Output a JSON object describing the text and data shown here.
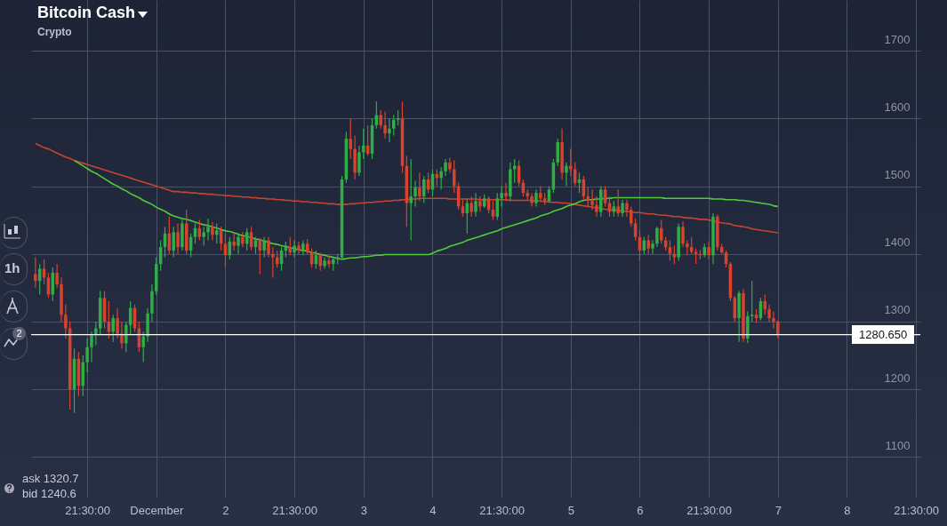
{
  "chart_data": {
    "type": "candlestick",
    "title": "Bitcoin Cash",
    "subtitle": "Crypto",
    "annotations": [
      "1h",
      "2",
      "ask 1320.7",
      "bid 1240.6"
    ],
    "categories": [
      null,
      null,
      null,
      null,
      null,
      null,
      null,
      null,
      null,
      null,
      null,
      null,
      "21:30:00",
      null,
      null,
      null,
      null,
      null,
      null,
      null,
      null,
      null,
      null,
      null,
      null,
      null,
      null,
      null,
      "December",
      null,
      null,
      null,
      null,
      null,
      null,
      null,
      null,
      null,
      null,
      null,
      null,
      null,
      null,
      null,
      "2",
      null,
      null,
      null,
      null,
      null,
      null,
      null,
      null,
      null,
      null,
      null,
      null,
      null,
      null,
      null,
      "21:30:00",
      null,
      null,
      null,
      null,
      null,
      null,
      null,
      null,
      null,
      null,
      null,
      null,
      null,
      null,
      null,
      "3",
      null,
      null,
      null,
      null,
      null,
      null,
      null,
      null,
      null,
      null,
      null,
      null,
      null,
      null,
      null,
      "4",
      null,
      null,
      null,
      null,
      null,
      null,
      null,
      null,
      null,
      null,
      null,
      null,
      null,
      null,
      null,
      "21:30:00",
      null,
      null,
      null,
      null,
      null,
      null,
      null,
      null,
      null,
      null,
      null,
      null,
      null,
      null,
      null,
      "5",
      null,
      null,
      null,
      null,
      null,
      null,
      null,
      null,
      null,
      null,
      null,
      null,
      null,
      null,
      null,
      "6",
      null,
      null,
      null,
      null,
      null,
      null,
      null,
      null,
      null,
      null,
      null,
      null,
      null,
      null,
      null,
      "21:30:00",
      null,
      null,
      null,
      null,
      null,
      null,
      null,
      null,
      null,
      null,
      null,
      null,
      null,
      null,
      null,
      "7",
      null,
      null,
      null,
      null,
      null,
      null,
      null,
      null,
      null,
      null,
      null,
      null,
      null,
      null,
      null,
      "8",
      null,
      null,
      null,
      null,
      null,
      null,
      null,
      null,
      null,
      null,
      null,
      null,
      null,
      null,
      null,
      "21:30:00"
    ],
    "ohlc": [
      [
        1370,
        1395,
        1350,
        1360
      ],
      [
        1360,
        1385,
        1340,
        1378
      ],
      [
        1378,
        1392,
        1355,
        1365
      ],
      [
        1365,
        1372,
        1335,
        1340
      ],
      [
        1340,
        1380,
        1330,
        1372
      ],
      [
        1372,
        1385,
        1350,
        1355
      ],
      [
        1355,
        1365,
        1300,
        1310
      ],
      [
        1310,
        1325,
        1275,
        1290
      ],
      [
        1290,
        1300,
        1170,
        1200
      ],
      [
        1200,
        1260,
        1165,
        1245
      ],
      [
        1245,
        1255,
        1190,
        1205
      ],
      [
        1205,
        1250,
        1190,
        1240
      ],
      [
        1240,
        1275,
        1225,
        1262
      ],
      [
        1262,
        1285,
        1240,
        1280
      ],
      [
        1280,
        1300,
        1265,
        1290
      ],
      [
        1290,
        1345,
        1280,
        1335
      ],
      [
        1335,
        1345,
        1290,
        1300
      ],
      [
        1300,
        1330,
        1275,
        1285
      ],
      [
        1285,
        1310,
        1270,
        1305
      ],
      [
        1305,
        1320,
        1275,
        1282
      ],
      [
        1282,
        1300,
        1260,
        1268
      ],
      [
        1268,
        1300,
        1255,
        1295
      ],
      [
        1295,
        1330,
        1280,
        1320
      ],
      [
        1320,
        1325,
        1285,
        1290
      ],
      [
        1290,
        1300,
        1255,
        1262
      ],
      [
        1262,
        1285,
        1240,
        1278
      ],
      [
        1278,
        1320,
        1270,
        1312
      ],
      [
        1312,
        1355,
        1300,
        1345
      ],
      [
        1345,
        1395,
        1340,
        1385
      ],
      [
        1385,
        1420,
        1375,
        1410
      ],
      [
        1410,
        1440,
        1395,
        1430
      ],
      [
        1430,
        1455,
        1400,
        1405
      ],
      [
        1405,
        1440,
        1395,
        1432
      ],
      [
        1432,
        1445,
        1400,
        1410
      ],
      [
        1410,
        1450,
        1405,
        1445
      ],
      [
        1445,
        1465,
        1400,
        1405
      ],
      [
        1405,
        1430,
        1395,
        1425
      ],
      [
        1425,
        1445,
        1415,
        1438
      ],
      [
        1438,
        1450,
        1420,
        1425
      ],
      [
        1425,
        1440,
        1412,
        1432
      ],
      [
        1432,
        1452,
        1420,
        1440
      ],
      [
        1440,
        1447,
        1420,
        1428
      ],
      [
        1428,
        1445,
        1415,
        1435
      ],
      [
        1435,
        1440,
        1405,
        1415
      ],
      [
        1415,
        1430,
        1380,
        1398
      ],
      [
        1398,
        1425,
        1392,
        1418
      ],
      [
        1418,
        1432,
        1405,
        1412
      ],
      [
        1412,
        1430,
        1400,
        1425
      ],
      [
        1425,
        1432,
        1410,
        1415
      ],
      [
        1415,
        1438,
        1405,
        1432
      ],
      [
        1432,
        1440,
        1405,
        1410
      ],
      [
        1410,
        1425,
        1400,
        1420
      ],
      [
        1420,
        1423,
        1370,
        1405
      ],
      [
        1405,
        1425,
        1395,
        1420
      ],
      [
        1420,
        1425,
        1395,
        1400
      ],
      [
        1400,
        1410,
        1365,
        1395
      ],
      [
        1395,
        1405,
        1380,
        1385
      ],
      [
        1385,
        1410,
        1375,
        1405
      ],
      [
        1405,
        1418,
        1395,
        1410
      ],
      [
        1410,
        1425,
        1398,
        1402
      ],
      [
        1402,
        1420,
        1395,
        1412
      ],
      [
        1412,
        1418,
        1400,
        1405
      ],
      [
        1405,
        1420,
        1398,
        1415
      ],
      [
        1415,
        1422,
        1400,
        1402
      ],
      [
        1402,
        1408,
        1380,
        1385
      ],
      [
        1385,
        1405,
        1378,
        1398
      ],
      [
        1398,
        1402,
        1375,
        1382
      ],
      [
        1382,
        1395,
        1378,
        1390
      ],
      [
        1390,
        1398,
        1380,
        1385
      ],
      [
        1385,
        1395,
        1375,
        1392
      ],
      [
        1392,
        1400,
        1385,
        1395
      ],
      [
        1395,
        1515,
        1392,
        1510
      ],
      [
        1510,
        1580,
        1505,
        1570
      ],
      [
        1570,
        1600,
        1540,
        1555
      ],
      [
        1555,
        1575,
        1510,
        1520
      ],
      [
        1520,
        1560,
        1515,
        1550
      ],
      [
        1550,
        1585,
        1540,
        1560
      ],
      [
        1560,
        1590,
        1545,
        1548
      ],
      [
        1548,
        1600,
        1540,
        1590
      ],
      [
        1590,
        1625,
        1585,
        1605
      ],
      [
        1605,
        1612,
        1585,
        1590
      ],
      [
        1590,
        1610,
        1570,
        1578
      ],
      [
        1578,
        1600,
        1565,
        1585
      ],
      [
        1585,
        1605,
        1575,
        1598
      ],
      [
        1598,
        1612,
        1590,
        1600
      ],
      [
        1600,
        1625,
        1520,
        1530
      ],
      [
        1530,
        1545,
        1440,
        1475
      ],
      [
        1475,
        1540,
        1420,
        1485
      ],
      [
        1485,
        1508,
        1470,
        1498
      ],
      [
        1498,
        1520,
        1478,
        1485
      ],
      [
        1485,
        1515,
        1475,
        1510
      ],
      [
        1510,
        1520,
        1490,
        1495
      ],
      [
        1495,
        1525,
        1485,
        1518
      ],
      [
        1518,
        1525,
        1500,
        1512
      ],
      [
        1512,
        1528,
        1495,
        1522
      ],
      [
        1522,
        1540,
        1515,
        1535
      ],
      [
        1535,
        1542,
        1520,
        1525
      ],
      [
        1525,
        1538,
        1490,
        1500
      ],
      [
        1500,
        1505,
        1465,
        1470
      ],
      [
        1470,
        1480,
        1455,
        1460
      ],
      [
        1460,
        1482,
        1430,
        1475
      ],
      [
        1475,
        1485,
        1455,
        1462
      ],
      [
        1462,
        1490,
        1455,
        1478
      ],
      [
        1478,
        1485,
        1462,
        1470
      ],
      [
        1470,
        1488,
        1468,
        1482
      ],
      [
        1482,
        1485,
        1460,
        1465
      ],
      [
        1465,
        1478,
        1450,
        1455
      ],
      [
        1455,
        1490,
        1450,
        1482
      ],
      [
        1482,
        1500,
        1470,
        1490
      ],
      [
        1490,
        1505,
        1478,
        1485
      ],
      [
        1485,
        1535,
        1478,
        1525
      ],
      [
        1525,
        1540,
        1505,
        1530
      ],
      [
        1530,
        1538,
        1500,
        1505
      ],
      [
        1505,
        1510,
        1485,
        1490
      ],
      [
        1490,
        1495,
        1480,
        1485
      ],
      [
        1485,
        1490,
        1470,
        1475
      ],
      [
        1475,
        1495,
        1470,
        1490
      ],
      [
        1490,
        1500,
        1478,
        1482
      ],
      [
        1482,
        1490,
        1472,
        1478
      ],
      [
        1478,
        1500,
        1475,
        1495
      ],
      [
        1495,
        1540,
        1490,
        1535
      ],
      [
        1535,
        1570,
        1530,
        1565
      ],
      [
        1565,
        1585,
        1510,
        1520
      ],
      [
        1520,
        1535,
        1500,
        1530
      ],
      [
        1530,
        1555,
        1515,
        1525
      ],
      [
        1525,
        1535,
        1500,
        1505
      ],
      [
        1505,
        1520,
        1490,
        1510
      ],
      [
        1510,
        1515,
        1480,
        1485
      ],
      [
        1485,
        1498,
        1470,
        1478
      ],
      [
        1478,
        1495,
        1465,
        1472
      ],
      [
        1472,
        1485,
        1455,
        1462
      ],
      [
        1462,
        1500,
        1455,
        1495
      ],
      [
        1495,
        1500,
        1470,
        1475
      ],
      [
        1475,
        1485,
        1455,
        1462
      ],
      [
        1462,
        1478,
        1455,
        1470
      ],
      [
        1470,
        1495,
        1455,
        1460
      ],
      [
        1460,
        1480,
        1455,
        1475
      ],
      [
        1475,
        1480,
        1455,
        1465
      ],
      [
        1465,
        1470,
        1440,
        1445
      ],
      [
        1445,
        1452,
        1420,
        1425
      ],
      [
        1425,
        1435,
        1390,
        1405
      ],
      [
        1405,
        1425,
        1400,
        1420
      ],
      [
        1420,
        1428,
        1400,
        1408
      ],
      [
        1408,
        1420,
        1400,
        1415
      ],
      [
        1415,
        1440,
        1410,
        1438
      ],
      [
        1438,
        1450,
        1415,
        1420
      ],
      [
        1420,
        1425,
        1405,
        1410
      ],
      [
        1410,
        1420,
        1390,
        1400
      ],
      [
        1400,
        1412,
        1385,
        1395
      ],
      [
        1395,
        1445,
        1390,
        1440
      ],
      [
        1440,
        1448,
        1410,
        1415
      ],
      [
        1415,
        1420,
        1398,
        1410
      ],
      [
        1410,
        1425,
        1400,
        1403
      ],
      [
        1403,
        1408,
        1385,
        1400
      ],
      [
        1400,
        1406,
        1392,
        1398
      ],
      [
        1398,
        1415,
        1395,
        1410
      ],
      [
        1410,
        1418,
        1392,
        1398
      ],
      [
        1398,
        1460,
        1385,
        1455
      ],
      [
        1455,
        1458,
        1405,
        1410
      ],
      [
        1410,
        1415,
        1400,
        1402
      ],
      [
        1402,
        1405,
        1380,
        1385
      ],
      [
        1385,
        1388,
        1330,
        1335
      ],
      [
        1335,
        1338,
        1300,
        1305
      ],
      [
        1305,
        1345,
        1270,
        1342
      ],
      [
        1342,
        1348,
        1270,
        1275
      ],
      [
        1275,
        1315,
        1268,
        1308
      ],
      [
        1308,
        1360,
        1300,
        1310
      ],
      [
        1310,
        1318,
        1298,
        1305
      ],
      [
        1305,
        1335,
        1302,
        1330
      ],
      [
        1330,
        1340,
        1310,
        1318
      ],
      [
        1318,
        1325,
        1300,
        1305
      ],
      [
        1305,
        1315,
        1290,
        1300
      ],
      [
        1300,
        1302,
        1275,
        1280.65
      ],
      null,
      null,
      null,
      null,
      null,
      null,
      null,
      null,
      null,
      null,
      null,
      null,
      null,
      null,
      null,
      null,
      null,
      null,
      null,
      null,
      null,
      null,
      null,
      null,
      null,
      null,
      null,
      null,
      null,
      null,
      null,
      null
    ],
    "series": [
      {
        "type": "line",
        "color": "#c9442f",
        "values": [
          1563,
          1560,
          1557,
          1555,
          1552,
          1549,
          1546,
          1543,
          1541,
          1538,
          1536,
          1534,
          1532,
          1530,
          1528,
          1526,
          1524,
          1522,
          1520,
          1518,
          1516,
          1514,
          1512,
          1510,
          1508,
          1506,
          1504,
          1502,
          1500,
          1498,
          1496,
          1494,
          1492,
          1492,
          1491,
          1491,
          1490,
          1490,
          1489,
          1489,
          1488,
          1488,
          1487,
          1487,
          1486,
          1486,
          1485,
          1485,
          1484,
          1484,
          1483,
          1483,
          1482,
          1482,
          1481,
          1481,
          1480,
          1480,
          1479,
          1479,
          1478,
          1478,
          1477,
          1477,
          1476,
          1476,
          1475,
          1475,
          1474,
          1474,
          1473,
          1473,
          1473,
          1474,
          1474,
          1475,
          1475,
          1476,
          1476,
          1477,
          1477,
          1478,
          1478,
          1479,
          1479,
          1480,
          1480,
          1481,
          1481,
          1482,
          1482,
          1482,
          1482,
          1482,
          1482,
          1482,
          1481,
          1481,
          1481,
          1481,
          1481,
          1481,
          1481,
          1480,
          1480,
          1480,
          1480,
          1480,
          1480,
          1480,
          1479,
          1479,
          1479,
          1479,
          1479,
          1479,
          1478,
          1478,
          1477,
          1477,
          1476,
          1476,
          1475,
          1475,
          1474,
          1473,
          1472,
          1471,
          1470,
          1469,
          1468,
          1467,
          1466,
          1465,
          1465,
          1464,
          1463,
          1463,
          1462,
          1461,
          1461,
          1460,
          1459,
          1459,
          1458,
          1457,
          1457,
          1456,
          1455,
          1455,
          1454,
          1453,
          1453,
          1452,
          1451,
          1451,
          1450,
          1449,
          1447,
          1446,
          1445,
          1444,
          1442,
          1441,
          1440,
          1439,
          1437,
          1436,
          1435,
          1434,
          1433,
          1432,
          1431,
          null,
          null,
          null,
          null,
          null,
          null,
          null,
          null,
          null,
          null,
          null,
          null,
          null,
          null,
          null,
          null,
          null,
          null,
          null,
          null,
          null,
          null,
          null,
          null,
          null,
          null,
          null,
          null,
          null,
          null,
          null,
          null
        ]
      },
      {
        "type": "line",
        "color": "#4fcb3c",
        "values": [
          null,
          null,
          null,
          null,
          null,
          null,
          null,
          null,
          null,
          1538,
          1534,
          1530,
          1526,
          1522,
          1519,
          1515,
          1511,
          1507,
          1503,
          1500,
          1496,
          1493,
          1489,
          1486,
          1483,
          1479,
          1476,
          1473,
          1469,
          1466,
          1463,
          1459,
          1456,
          1454,
          1452,
          1451,
          1449,
          1447,
          1445,
          1443,
          1442,
          1440,
          1438,
          1436,
          1434,
          1433,
          1431,
          1429,
          1427,
          1426,
          1424,
          1422,
          1421,
          1419,
          1417,
          1415,
          1414,
          1412,
          1411,
          1409,
          1408,
          1406,
          1405,
          1404,
          1402,
          1401,
          1399,
          1398,
          1396,
          1395,
          1393,
          1392,
          1393,
          1394,
          1394,
          1395,
          1396,
          1396,
          1397,
          1398,
          1398,
          1399,
          1399,
          1399,
          1399,
          1399,
          1399,
          1399,
          1399,
          1399,
          1399,
          1399,
          1401,
          1404,
          1406,
          1408,
          1411,
          1413,
          1415,
          1417,
          1420,
          1422,
          1424,
          1426,
          1428,
          1430,
          1432,
          1434,
          1437,
          1439,
          1441,
          1443,
          1445,
          1447,
          1449,
          1451,
          1453,
          1456,
          1458,
          1460,
          1463,
          1465,
          1467,
          1470,
          1472,
          1474,
          1477,
          1479,
          1480,
          1480,
          1481,
          1481,
          1482,
          1482,
          1483,
          1483,
          1483,
          1483,
          1483,
          1483,
          1483,
          1483,
          1483,
          1483,
          1483,
          1483,
          1482,
          1482,
          1482,
          1482,
          1482,
          1482,
          1482,
          1482,
          1482,
          1482,
          1482,
          1481,
          1481,
          1481,
          1480,
          1480,
          1480,
          1479,
          1479,
          1478,
          1477,
          1476,
          1475,
          1474,
          1473,
          1471,
          1470,
          null,
          null,
          null,
          null,
          null,
          null,
          null,
          null,
          null,
          null,
          null,
          null,
          null,
          null,
          null,
          null,
          null,
          null,
          null,
          null,
          null,
          null,
          null,
          null,
          null,
          null,
          null,
          null,
          null,
          null,
          null,
          null
        ]
      }
    ],
    "ref_lines": [
      {
        "axis": "y",
        "value": 1280.65,
        "label": "1280.650",
        "color": "#ffffff"
      }
    ],
    "ylim": [
      1040,
      1775
    ],
    "yticks": [
      1100,
      1200,
      1300,
      1400,
      1500,
      1600,
      1700
    ],
    "grid": true
  }
}
